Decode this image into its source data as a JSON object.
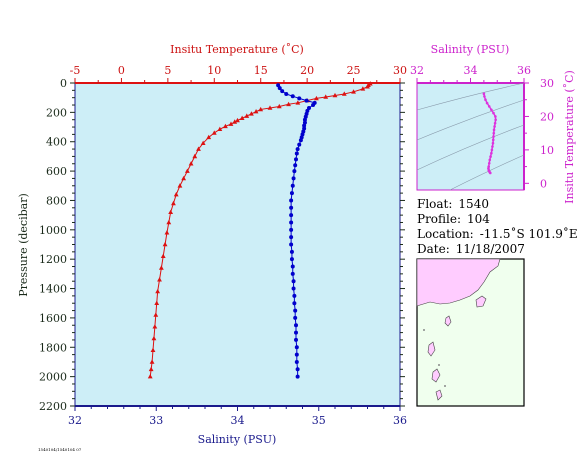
{
  "info": {
    "float_label": "Float:",
    "float_value": "1540",
    "profile_label": "Profile:",
    "profile_value": "104",
    "location_label": "Location:",
    "location_value": "-11.5˚S 101.9˚E",
    "date_label": "Date:",
    "date_value": "11/18/2007"
  },
  "footer_text": "1540104/1540104 07",
  "colors": {
    "panel_bg": "#cdeef7",
    "temperature": "#dd1111",
    "salinity": "#0000cc",
    "ts": "#dd33dd",
    "land": "#ffccff",
    "ocean": "#f0ffee",
    "axis_red": "#cc1111",
    "axis_blue": "#1a1a8c",
    "axis_mag": "#cc22cc"
  },
  "chart_data": [
    {
      "type": "scatter",
      "title": "",
      "top_axis_label": "Insitu Temperature (˚C)",
      "top_ticks": [
        -5,
        0,
        5,
        10,
        15,
        20,
        25,
        30
      ],
      "top_range": [
        -5,
        30
      ],
      "bottom_axis_label": "Salinity (PSU)",
      "bottom_ticks": [
        32,
        33,
        34,
        35,
        36
      ],
      "bottom_range": [
        32,
        36
      ],
      "ylabel": "Pressure (decibar)",
      "y_ticks": [
        0,
        200,
        400,
        600,
        800,
        1000,
        1200,
        1400,
        1600,
        1800,
        2000,
        2200
      ],
      "y_range": [
        0,
        2200
      ],
      "y_inverted": true,
      "series": [
        {
          "kind": "temperature",
          "values": [
            [
              26.8,
              5
            ],
            [
              26.6,
              15
            ],
            [
              26.5,
              25
            ],
            [
              26.0,
              40
            ],
            [
              25.0,
              60
            ],
            [
              24.0,
              75
            ],
            [
              23.0,
              85
            ],
            [
              22.0,
              95
            ],
            [
              21.0,
              105
            ],
            [
              20.0,
              120
            ],
            [
              19.0,
              135
            ],
            [
              18.0,
              145
            ],
            [
              17.0,
              160
            ],
            [
              16.0,
              170
            ],
            [
              15.0,
              180
            ],
            [
              14.5,
              195
            ],
            [
              14.0,
              210
            ],
            [
              13.5,
              225
            ],
            [
              13.0,
              240
            ],
            [
              12.5,
              255
            ],
            [
              12.2,
              265
            ],
            [
              11.8,
              280
            ],
            [
              11.2,
              295
            ],
            [
              10.6,
              315
            ],
            [
              10.0,
              340
            ],
            [
              9.4,
              370
            ],
            [
              8.8,
              410
            ],
            [
              8.3,
              450
            ],
            [
              7.9,
              500
            ],
            [
              7.5,
              550
            ],
            [
              7.1,
              600
            ],
            [
              6.7,
              650
            ],
            [
              6.3,
              700
            ],
            [
              5.9,
              760
            ],
            [
              5.6,
              820
            ],
            [
              5.3,
              880
            ],
            [
              5.1,
              950
            ],
            [
              4.9,
              1020
            ],
            [
              4.7,
              1100
            ],
            [
              4.5,
              1180
            ],
            [
              4.3,
              1260
            ],
            [
              4.1,
              1340
            ],
            [
              3.9,
              1420
            ],
            [
              3.8,
              1500
            ],
            [
              3.7,
              1580
            ],
            [
              3.6,
              1660
            ],
            [
              3.5,
              1740
            ],
            [
              3.4,
              1820
            ],
            [
              3.3,
              1900
            ],
            [
              3.2,
              1950
            ],
            [
              3.1,
              2000
            ]
          ]
        },
        {
          "kind": "salinity",
          "values": [
            [
              34.5,
              15
            ],
            [
              34.52,
              35
            ],
            [
              34.55,
              55
            ],
            [
              34.6,
              75
            ],
            [
              34.68,
              90
            ],
            [
              34.76,
              105
            ],
            [
              34.85,
              120
            ],
            [
              34.95,
              135
            ],
            [
              34.93,
              150
            ],
            [
              34.88,
              170
            ],
            [
              34.86,
              190
            ],
            [
              34.85,
              210
            ],
            [
              34.84,
              230
            ],
            [
              34.83,
              250
            ],
            [
              34.83,
              270
            ],
            [
              34.82,
              290
            ],
            [
              34.82,
              310
            ],
            [
              34.81,
              330
            ],
            [
              34.8,
              350
            ],
            [
              34.79,
              370
            ],
            [
              34.78,
              390
            ],
            [
              34.76,
              420
            ],
            [
              34.74,
              450
            ],
            [
              34.73,
              480
            ],
            [
              34.72,
              520
            ],
            [
              34.71,
              560
            ],
            [
              34.7,
              600
            ],
            [
              34.69,
              650
            ],
            [
              34.68,
              700
            ],
            [
              34.67,
              750
            ],
            [
              34.66,
              800
            ],
            [
              34.66,
              850
            ],
            [
              34.66,
              900
            ],
            [
              34.66,
              950
            ],
            [
              34.66,
              1000
            ],
            [
              34.66,
              1050
            ],
            [
              34.66,
              1100
            ],
            [
              34.67,
              1150
            ],
            [
              34.67,
              1200
            ],
            [
              34.68,
              1250
            ],
            [
              34.68,
              1300
            ],
            [
              34.69,
              1350
            ],
            [
              34.69,
              1400
            ],
            [
              34.7,
              1450
            ],
            [
              34.7,
              1500
            ],
            [
              34.71,
              1550
            ],
            [
              34.71,
              1600
            ],
            [
              34.72,
              1650
            ],
            [
              34.72,
              1700
            ],
            [
              34.72,
              1750
            ],
            [
              34.73,
              1800
            ],
            [
              34.73,
              1850
            ],
            [
              34.73,
              1900
            ],
            [
              34.74,
              1950
            ],
            [
              34.74,
              2000
            ]
          ]
        }
      ]
    },
    {
      "type": "scatter",
      "title": "",
      "xlabel": "Salinity (PSU)",
      "x_ticks": [
        32,
        34,
        36
      ],
      "x_range": [
        32,
        36
      ],
      "ylabel": "Insitu Temperature (˚C)",
      "y_ticks": [
        0,
        10,
        20,
        30
      ],
      "y_range": [
        -2,
        30
      ],
      "series": [
        {
          "kind": "ts",
          "values": [
            [
              34.5,
              26.8
            ],
            [
              34.52,
              26.0
            ],
            [
              34.56,
              25.0
            ],
            [
              34.62,
              24.0
            ],
            [
              34.7,
              23.0
            ],
            [
              34.78,
              22.0
            ],
            [
              34.86,
              21.0
            ],
            [
              34.93,
              20.0
            ],
            [
              34.94,
              19.0
            ],
            [
              34.92,
              18.0
            ],
            [
              34.9,
              17.0
            ],
            [
              34.88,
              16.0
            ],
            [
              34.87,
              15.0
            ],
            [
              34.86,
              14.0
            ],
            [
              34.85,
              13.0
            ],
            [
              34.84,
              12.0
            ],
            [
              34.82,
              11.0
            ],
            [
              34.8,
              10.0
            ],
            [
              34.78,
              9.0
            ],
            [
              34.75,
              8.0
            ],
            [
              34.72,
              7.0
            ],
            [
              34.7,
              6.0
            ],
            [
              34.68,
              5.0
            ],
            [
              34.67,
              4.5
            ],
            [
              34.68,
              4.0
            ],
            [
              34.7,
              3.6
            ],
            [
              34.72,
              3.3
            ],
            [
              34.74,
              3.1
            ]
          ]
        }
      ]
    }
  ]
}
